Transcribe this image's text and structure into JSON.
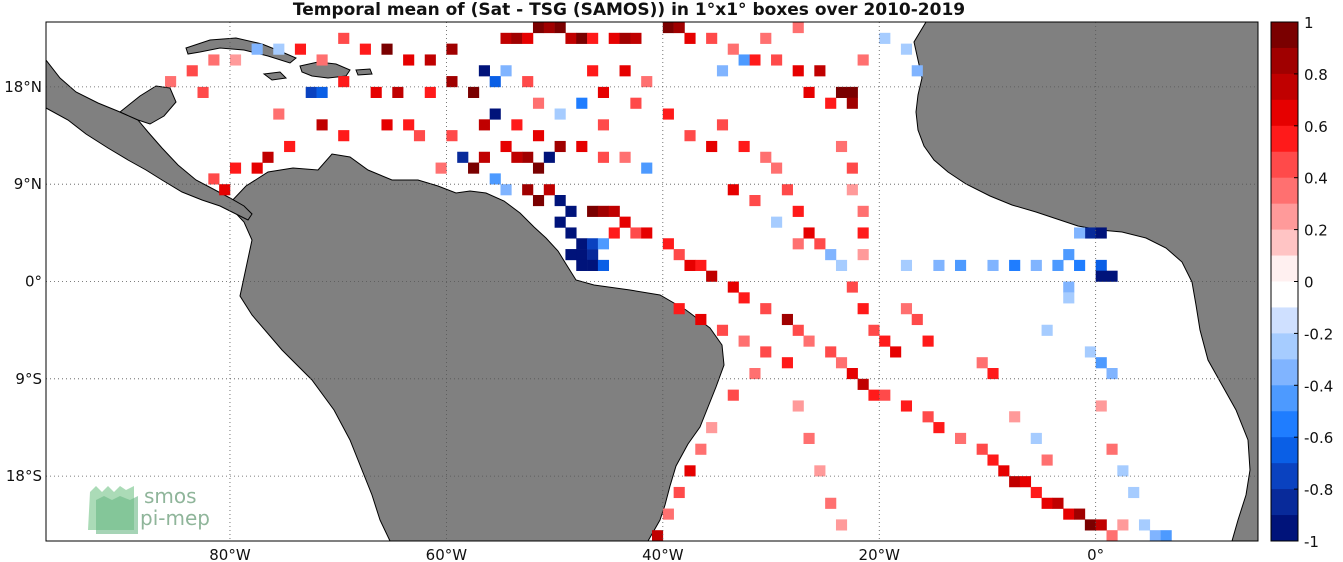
{
  "title": "Temporal mean of (Sat - TSG (SAMOS)) in 1°x1° boxes over 2010-2019",
  "map": {
    "lon_range": [
      -97,
      15
    ],
    "lat_range": [
      -24,
      24
    ],
    "lon_ticks": [
      {
        "value": -80,
        "label": "80°W"
      },
      {
        "value": -60,
        "label": "60°W"
      },
      {
        "value": -40,
        "label": "40°W"
      },
      {
        "value": -20,
        "label": "20°W"
      },
      {
        "value": 0,
        "label": "0°"
      }
    ],
    "lat_ticks": [
      {
        "value": 18,
        "label": "18°N"
      },
      {
        "value": 9,
        "label": "9°N"
      },
      {
        "value": 0,
        "label": "0°"
      },
      {
        "value": -9,
        "label": "9°S"
      },
      {
        "value": -18,
        "label": "18°S"
      }
    ],
    "colors": {
      "land": "#808080",
      "coast": "#000000",
      "grid": "#555555"
    }
  },
  "colorbar": {
    "range": [
      -1,
      1
    ],
    "tick_labels": [
      "1",
      "0.8",
      "0.6",
      "0.4",
      "0.2",
      "0",
      "-0.2",
      "-0.4",
      "-0.6",
      "-0.8",
      "-1"
    ],
    "bins": [
      "#fff0f0",
      "#ffc4c4",
      "#ff9a9a",
      "#ff7070",
      "#ff4a4a",
      "#ff1a1a",
      "#e60000",
      "#c00000",
      "#a00000",
      "#7a0000",
      "#ffffff",
      "#cfe0ff",
      "#a6ccff",
      "#80b4ff",
      "#4d9aff",
      "#1f7dff",
      "#0a5fe6",
      "#0a42c0",
      "#082a9a",
      "#00137a"
    ]
  },
  "logo": {
    "line1": "smos",
    "line2": "pi-mep"
  },
  "chart_data": {
    "type": "heatmap",
    "title": "Temporal mean of (Sat - TSG (SAMOS)) in 1°x1° boxes over 2010-2019",
    "value_range": [
      -1,
      1
    ],
    "cells": [
      {
        "lon": -52,
        "lat": 23,
        "v": 0.9
      },
      {
        "lon": -51,
        "lat": 23,
        "v": 0.8
      },
      {
        "lon": -50,
        "lat": 23,
        "v": 0.9
      },
      {
        "lon": -55,
        "lat": 22,
        "v": 0.7
      },
      {
        "lon": -54,
        "lat": 22,
        "v": 0.8
      },
      {
        "lon": -53,
        "lat": 22,
        "v": 0.6
      },
      {
        "lon": -49,
        "lat": 22,
        "v": 0.7
      },
      {
        "lon": -48,
        "lat": 22,
        "v": 0.9
      },
      {
        "lon": -47,
        "lat": 22,
        "v": 0.5
      },
      {
        "lon": -45,
        "lat": 22,
        "v": 0.6
      },
      {
        "lon": -44,
        "lat": 22,
        "v": 0.8
      },
      {
        "lon": -43,
        "lat": 22,
        "v": 0.7
      },
      {
        "lon": -40,
        "lat": 23,
        "v": 0.9
      },
      {
        "lon": -39,
        "lat": 23,
        "v": 0.8
      },
      {
        "lon": -38,
        "lat": 22,
        "v": 0.6
      },
      {
        "lon": -36,
        "lat": 22,
        "v": 0.4
      },
      {
        "lon": -34,
        "lat": 21,
        "v": 0.3
      },
      {
        "lon": -32,
        "lat": 20,
        "v": 0.5
      },
      {
        "lon": -30,
        "lat": 20,
        "v": 0.4
      },
      {
        "lon": -28,
        "lat": 19,
        "v": 0.6
      },
      {
        "lon": -26,
        "lat": 19,
        "v": 0.7
      },
      {
        "lon": -23,
        "lat": 17,
        "v": 1.0
      },
      {
        "lon": -24,
        "lat": 17,
        "v": 0.9
      },
      {
        "lon": -23,
        "lat": 16,
        "v": 0.8
      },
      {
        "lon": -25,
        "lat": 16,
        "v": 0.5
      },
      {
        "lon": -27,
        "lat": 17,
        "v": 0.6
      },
      {
        "lon": -60,
        "lat": 21,
        "v": 0.8
      },
      {
        "lon": -62,
        "lat": 20,
        "v": 0.7
      },
      {
        "lon": -64,
        "lat": 20,
        "v": 0.6
      },
      {
        "lon": -66,
        "lat": 21,
        "v": 0.9
      },
      {
        "lon": -68,
        "lat": 21,
        "v": 0.5
      },
      {
        "lon": -70,
        "lat": 22,
        "v": 0.4
      },
      {
        "lon": -72,
        "lat": 20,
        "v": 0.3
      },
      {
        "lon": -74,
        "lat": 21,
        "v": 0.5
      },
      {
        "lon": -76,
        "lat": 21,
        "v": -0.2
      },
      {
        "lon": -78,
        "lat": 21,
        "v": -0.3
      },
      {
        "lon": -80,
        "lat": 20,
        "v": 0.2
      },
      {
        "lon": -82,
        "lat": 20,
        "v": 0.3
      },
      {
        "lon": -84,
        "lat": 19,
        "v": 0.4
      },
      {
        "lon": -86,
        "lat": 18,
        "v": 0.3
      },
      {
        "lon": -83,
        "lat": 17,
        "v": 0.4
      },
      {
        "lon": -73,
        "lat": 17,
        "v": -0.7
      },
      {
        "lon": -72,
        "lat": 17,
        "v": -0.6
      },
      {
        "lon": -70,
        "lat": 18,
        "v": 0.5
      },
      {
        "lon": -67,
        "lat": 17,
        "v": 0.6
      },
      {
        "lon": -65,
        "lat": 17,
        "v": 0.7
      },
      {
        "lon": -62,
        "lat": 17,
        "v": 0.5
      },
      {
        "lon": -60,
        "lat": 18,
        "v": 0.8
      },
      {
        "lon": -58,
        "lat": 17,
        "v": 0.9
      },
      {
        "lon": -57,
        "lat": 19,
        "v": -0.9
      },
      {
        "lon": -56,
        "lat": 18,
        "v": -0.6
      },
      {
        "lon": -55,
        "lat": 19,
        "v": -0.3
      },
      {
        "lon": -53,
        "lat": 18,
        "v": 0.4
      },
      {
        "lon": -57,
        "lat": 14,
        "v": 0.7
      },
      {
        "lon": -56,
        "lat": 15,
        "v": -0.9
      },
      {
        "lon": -54,
        "lat": 14,
        "v": 0.5
      },
      {
        "lon": -52,
        "lat": 13,
        "v": 0.6
      },
      {
        "lon": -50,
        "lat": 12,
        "v": 0.8
      },
      {
        "lon": -48,
        "lat": 12,
        "v": 0.6
      },
      {
        "lon": -46,
        "lat": 11,
        "v": 0.4
      },
      {
        "lon": -44,
        "lat": 11,
        "v": 0.3
      },
      {
        "lon": -42,
        "lat": 10,
        "v": -0.4
      },
      {
        "lon": -53,
        "lat": 11,
        "v": 0.8
      },
      {
        "lon": -52,
        "lat": 10,
        "v": 0.9
      },
      {
        "lon": -51,
        "lat": 11,
        "v": -0.9
      },
      {
        "lon": -54,
        "lat": 11,
        "v": 0.7
      },
      {
        "lon": -55,
        "lat": 12,
        "v": 0.6
      },
      {
        "lon": -57,
        "lat": 11,
        "v": 0.7
      },
      {
        "lon": -59,
        "lat": 11,
        "v": -0.8
      },
      {
        "lon": -58,
        "lat": 10,
        "v": 0.9
      },
      {
        "lon": -56,
        "lat": 9,
        "v": -0.4
      },
      {
        "lon": -55,
        "lat": 8,
        "v": -0.3
      },
      {
        "lon": -53,
        "lat": 8,
        "v": 0.8
      },
      {
        "lon": -52,
        "lat": 7,
        "v": 0.9
      },
      {
        "lon": -51,
        "lat": 8,
        "v": 0.7
      },
      {
        "lon": -50,
        "lat": 7,
        "v": -1.0
      },
      {
        "lon": -49,
        "lat": 6,
        "v": -1.0
      },
      {
        "lon": -50,
        "lat": 5,
        "v": -1.0
      },
      {
        "lon": -49,
        "lat": 4,
        "v": -0.9
      },
      {
        "lon": -48,
        "lat": 3,
        "v": -1.0
      },
      {
        "lon": -49,
        "lat": 2,
        "v": -1.0
      },
      {
        "lon": -48,
        "lat": 2,
        "v": -1.0
      },
      {
        "lon": -47,
        "lat": 2,
        "v": -0.8
      },
      {
        "lon": -48,
        "lat": 1,
        "v": -1.0
      },
      {
        "lon": -47,
        "lat": 1,
        "v": -1.0
      },
      {
        "lon": -46,
        "lat": 1,
        "v": -0.6
      },
      {
        "lon": -47,
        "lat": 3,
        "v": -0.7
      },
      {
        "lon": -46,
        "lat": 3,
        "v": -0.4
      },
      {
        "lon": -45,
        "lat": 4,
        "v": 0.5
      },
      {
        "lon": -47,
        "lat": 6,
        "v": 0.9
      },
      {
        "lon": -46,
        "lat": 6,
        "v": 0.8
      },
      {
        "lon": -45,
        "lat": 6,
        "v": 0.7
      },
      {
        "lon": -44,
        "lat": 5,
        "v": 0.6
      },
      {
        "lon": -43,
        "lat": 4,
        "v": 0.4
      },
      {
        "lon": -42,
        "lat": 4,
        "v": 0.6
      },
      {
        "lon": -40,
        "lat": 3,
        "v": 0.5
      },
      {
        "lon": -39,
        "lat": 2,
        "v": 0.4
      },
      {
        "lon": -38,
        "lat": 1,
        "v": 0.6
      },
      {
        "lon": -37,
        "lat": 1,
        "v": 0.5
      },
      {
        "lon": -36,
        "lat": 0,
        "v": 0.7
      },
      {
        "lon": -34,
        "lat": -1,
        "v": 0.6
      },
      {
        "lon": -33,
        "lat": -2,
        "v": 0.5
      },
      {
        "lon": -31,
        "lat": -3,
        "v": 0.4
      },
      {
        "lon": -29,
        "lat": -4,
        "v": 0.8
      },
      {
        "lon": -28,
        "lat": -5,
        "v": 0.4
      },
      {
        "lon": -27,
        "lat": -6,
        "v": 0.3
      },
      {
        "lon": -25,
        "lat": -7,
        "v": 0.4
      },
      {
        "lon": -24,
        "lat": -8,
        "v": 0.3
      },
      {
        "lon": -23,
        "lat": -9,
        "v": 0.6
      },
      {
        "lon": -22,
        "lat": -10,
        "v": 0.7
      },
      {
        "lon": -21,
        "lat": -11,
        "v": 0.5
      },
      {
        "lon": -20,
        "lat": -11,
        "v": 0.4
      },
      {
        "lon": -18,
        "lat": -12,
        "v": 0.5
      },
      {
        "lon": -16,
        "lat": -13,
        "v": 0.4
      },
      {
        "lon": -15,
        "lat": -14,
        "v": 0.5
      },
      {
        "lon": -13,
        "lat": -15,
        "v": 0.3
      },
      {
        "lon": -11,
        "lat": -16,
        "v": 0.4
      },
      {
        "lon": -10,
        "lat": -17,
        "v": 0.5
      },
      {
        "lon": -9,
        "lat": -18,
        "v": 0.6
      },
      {
        "lon": -8,
        "lat": -19,
        "v": 0.7
      },
      {
        "lon": -7,
        "lat": -19,
        "v": 0.6
      },
      {
        "lon": -6,
        "lat": -20,
        "v": 0.5
      },
      {
        "lon": -5,
        "lat": -21,
        "v": 0.6
      },
      {
        "lon": -4,
        "lat": -21,
        "v": 0.7
      },
      {
        "lon": -3,
        "lat": -22,
        "v": 0.6
      },
      {
        "lon": -2,
        "lat": -22,
        "v": 0.8
      },
      {
        "lon": -1,
        "lat": -23,
        "v": 0.9
      },
      {
        "lon": 0,
        "lat": -23,
        "v": 0.7
      },
      {
        "lon": 1,
        "lat": -24,
        "v": 0.3
      },
      {
        "lon": 2,
        "lat": -23,
        "v": 0.2
      },
      {
        "lon": 4,
        "lat": -23,
        "v": -0.2
      },
      {
        "lon": 5,
        "lat": -24,
        "v": -0.3
      },
      {
        "lon": 6,
        "lat": -24,
        "v": -0.4
      },
      {
        "lon": -41,
        "lat": -24,
        "v": 0.7
      },
      {
        "lon": -40,
        "lat": -22,
        "v": 0.3
      },
      {
        "lon": -39,
        "lat": -20,
        "v": 0.4
      },
      {
        "lon": -38,
        "lat": -18,
        "v": 0.6
      },
      {
        "lon": -37,
        "lat": -16,
        "v": 0.3
      },
      {
        "lon": -36,
        "lat": -14,
        "v": 0.2
      },
      {
        "lon": -34,
        "lat": -11,
        "v": 0.4
      },
      {
        "lon": -32,
        "lat": -9,
        "v": 0.3
      },
      {
        "lon": -39,
        "lat": -3,
        "v": 0.5
      },
      {
        "lon": -37,
        "lat": -4,
        "v": 0.6
      },
      {
        "lon": -35,
        "lat": -5,
        "v": 0.4
      },
      {
        "lon": -33,
        "lat": -6,
        "v": 0.3
      },
      {
        "lon": -31,
        "lat": -7,
        "v": 0.4
      },
      {
        "lon": -29,
        "lat": -8,
        "v": 0.5
      },
      {
        "lon": -28,
        "lat": -12,
        "v": 0.2
      },
      {
        "lon": -27,
        "lat": -15,
        "v": 0.3
      },
      {
        "lon": -26,
        "lat": -18,
        "v": 0.2
      },
      {
        "lon": -25,
        "lat": -21,
        "v": 0.3
      },
      {
        "lon": -24,
        "lat": -23,
        "v": 0.2
      },
      {
        "lon": -30,
        "lat": 10,
        "v": 0.3
      },
      {
        "lon": -29,
        "lat": 8,
        "v": 0.4
      },
      {
        "lon": -28,
        "lat": 6,
        "v": 0.5
      },
      {
        "lon": -27,
        "lat": 4,
        "v": 0.6
      },
      {
        "lon": -26,
        "lat": 3,
        "v": 0.4
      },
      {
        "lon": -25,
        "lat": 2,
        "v": -0.3
      },
      {
        "lon": -24,
        "lat": 1,
        "v": -0.2
      },
      {
        "lon": -23,
        "lat": -1,
        "v": 0.4
      },
      {
        "lon": -22,
        "lat": -3,
        "v": 0.5
      },
      {
        "lon": -21,
        "lat": -5,
        "v": 0.4
      },
      {
        "lon": -20,
        "lat": -6,
        "v": 0.5
      },
      {
        "lon": -19,
        "lat": -7,
        "v": 0.6
      },
      {
        "lon": -24,
        "lat": 12,
        "v": 0.3
      },
      {
        "lon": -23,
        "lat": 10,
        "v": 0.4
      },
      {
        "lon": -23,
        "lat": 8,
        "v": 0.2
      },
      {
        "lon": -22,
        "lat": 6,
        "v": 0.3
      },
      {
        "lon": -22,
        "lat": 4,
        "v": 0.5
      },
      {
        "lon": -22,
        "lat": 2,
        "v": 0.2
      },
      {
        "lon": -35,
        "lat": 14,
        "v": 0.4
      },
      {
        "lon": -33,
        "lat": 12,
        "v": 0.5
      },
      {
        "lon": -31,
        "lat": 11,
        "v": 0.3
      },
      {
        "lon": -34,
        "lat": 8,
        "v": 0.6
      },
      {
        "lon": -32,
        "lat": 7,
        "v": 0.4
      },
      {
        "lon": -30,
        "lat": 5,
        "v": -0.2
      },
      {
        "lon": -28,
        "lat": 3,
        "v": 0.3
      },
      {
        "lon": -40,
        "lat": 15,
        "v": 0.5
      },
      {
        "lon": -38,
        "lat": 13,
        "v": 0.4
      },
      {
        "lon": -36,
        "lat": 12,
        "v": 0.6
      },
      {
        "lon": -43,
        "lat": 16,
        "v": 0.4
      },
      {
        "lon": -46,
        "lat": 17,
        "v": 0.6
      },
      {
        "lon": -18,
        "lat": 1,
        "v": -0.2
      },
      {
        "lon": -15,
        "lat": 1,
        "v": -0.3
      },
      {
        "lon": -13,
        "lat": 1,
        "v": -0.4
      },
      {
        "lon": -10,
        "lat": 1,
        "v": -0.3
      },
      {
        "lon": -8,
        "lat": 1,
        "v": -0.5
      },
      {
        "lon": -6,
        "lat": 1,
        "v": -0.3
      },
      {
        "lon": -4,
        "lat": 1,
        "v": -0.4
      },
      {
        "lon": -2,
        "lat": 1,
        "v": -0.5
      },
      {
        "lon": 0,
        "lat": 1,
        "v": -0.6
      },
      {
        "lon": 0,
        "lat": 0,
        "v": -1.0
      },
      {
        "lon": 1,
        "lat": 0,
        "v": -0.9
      },
      {
        "lon": -1,
        "lat": 4,
        "v": -0.8
      },
      {
        "lon": 0,
        "lat": 4,
        "v": -1.0
      },
      {
        "lon": -2,
        "lat": 4,
        "v": -0.3
      },
      {
        "lon": -3,
        "lat": 2,
        "v": -0.4
      },
      {
        "lon": -3,
        "lat": -1,
        "v": -0.3
      },
      {
        "lon": -3,
        "lat": -2,
        "v": -0.2
      },
      {
        "lon": -1,
        "lat": -7,
        "v": -0.2
      },
      {
        "lon": 0,
        "lat": -8,
        "v": -0.4
      },
      {
        "lon": 1,
        "lat": -9,
        "v": -0.3
      },
      {
        "lon": 0,
        "lat": -12,
        "v": 0.2
      },
      {
        "lon": 1,
        "lat": -16,
        "v": 0.3
      },
      {
        "lon": 2,
        "lat": -18,
        "v": -0.2
      },
      {
        "lon": 3,
        "lat": -20,
        "v": -0.2
      },
      {
        "lon": -11,
        "lat": -8,
        "v": 0.3
      },
      {
        "lon": -10,
        "lat": -9,
        "v": 0.5
      },
      {
        "lon": -8,
        "lat": -13,
        "v": 0.2
      },
      {
        "lon": -6,
        "lat": -15,
        "v": -0.2
      },
      {
        "lon": -5,
        "lat": -17,
        "v": 0.3
      },
      {
        "lon": -5,
        "lat": -5,
        "v": -0.2
      },
      {
        "lon": -17,
        "lat": -4,
        "v": 0.4
      },
      {
        "lon": -16,
        "lat": -6,
        "v": 0.5
      },
      {
        "lon": -18,
        "lat": -3,
        "v": 0.3
      },
      {
        "lon": -64,
        "lat": 14,
        "v": 0.5
      },
      {
        "lon": -66,
        "lat": 14,
        "v": 0.6
      },
      {
        "lon": -63,
        "lat": 13,
        "v": 0.4
      },
      {
        "lon": -70,
        "lat": 13,
        "v": 0.5
      },
      {
        "lon": -72,
        "lat": 14,
        "v": 0.7
      },
      {
        "lon": -75,
        "lat": 12,
        "v": 0.5
      },
      {
        "lon": -77,
        "lat": 11,
        "v": 0.7
      },
      {
        "lon": -78,
        "lat": 10,
        "v": 0.6
      },
      {
        "lon": -80,
        "lat": 10,
        "v": 0.5
      },
      {
        "lon": -81,
        "lat": 8,
        "v": 0.6
      },
      {
        "lon": -82,
        "lat": 9,
        "v": 0.4
      },
      {
        "lon": -76,
        "lat": 15,
        "v": 0.3
      },
      {
        "lon": -61,
        "lat": 10,
        "v": 0.3
      },
      {
        "lon": -60,
        "lat": 13,
        "v": 0.4
      },
      {
        "lon": -52,
        "lat": 16,
        "v": 0.3
      },
      {
        "lon": -50,
        "lat": 15,
        "v": -0.2
      },
      {
        "lon": -48,
        "lat": 16,
        "v": -0.5
      },
      {
        "lon": -46,
        "lat": 14,
        "v": 0.4
      },
      {
        "lon": -47,
        "lat": 19,
        "v": 0.5
      },
      {
        "lon": -44,
        "lat": 19,
        "v": 0.6
      },
      {
        "lon": -42,
        "lat": 18,
        "v": 0.3
      },
      {
        "lon": -18,
        "lat": 21,
        "v": -0.2
      },
      {
        "lon": -17,
        "lat": 19,
        "v": -0.3
      },
      {
        "lon": -20,
        "lat": 22,
        "v": -0.2
      },
      {
        "lon": -22,
        "lat": 20,
        "v": 0.3
      },
      {
        "lon": -28,
        "lat": 23,
        "v": 0.3
      },
      {
        "lon": -33,
        "lat": 20,
        "v": -0.4
      },
      {
        "lon": -35,
        "lat": 19,
        "v": -0.3
      },
      {
        "lon": -31,
        "lat": 22,
        "v": 0.3
      }
    ]
  }
}
